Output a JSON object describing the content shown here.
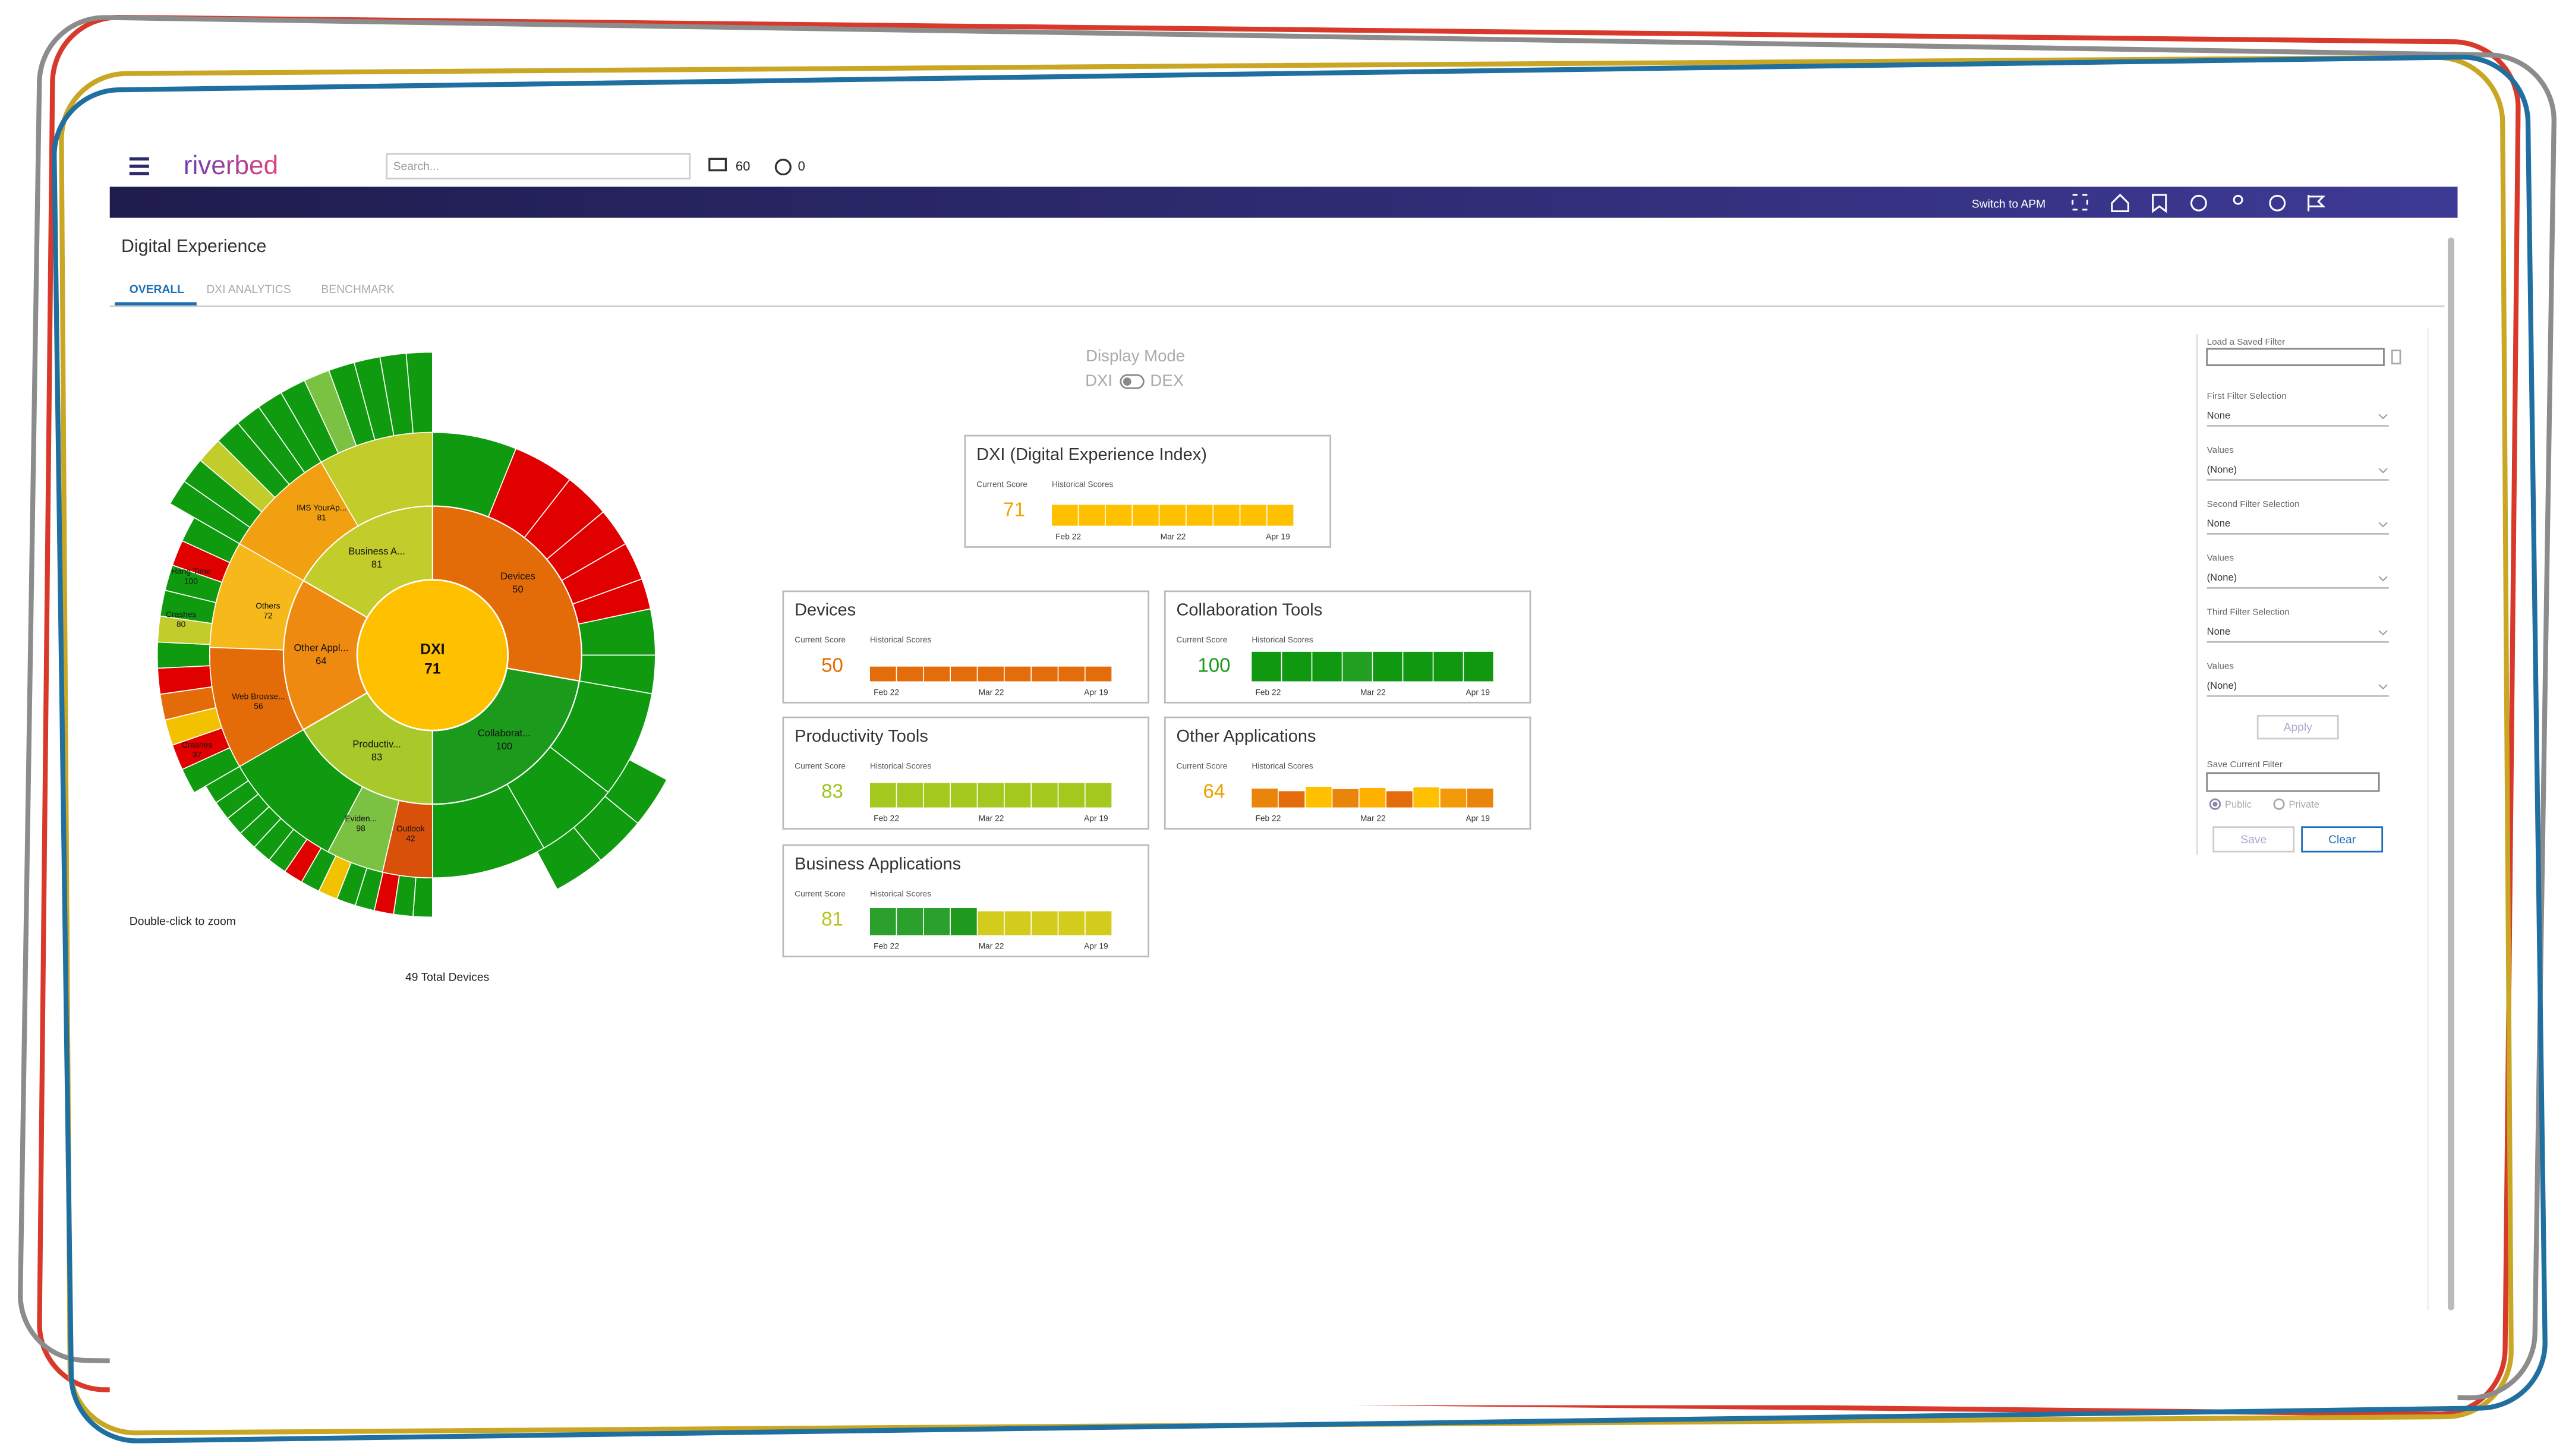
{
  "header": {
    "logo": "riverbed",
    "search_placeholder": "Search...",
    "devices_count": "60",
    "alerts_count": "0",
    "switch": "Switch to APM"
  },
  "page": {
    "title": "Digital Experience",
    "tabs": [
      "OVERALL",
      "DXI ANALYTICS",
      "BENCHMARK"
    ]
  },
  "display_mode": {
    "label": "Display Mode",
    "left": "DXI",
    "right": "DEX"
  },
  "cards": [
    {
      "title": "DXI (Digital Experience Index)",
      "current_label": "Current Score",
      "history_label": "Historical Scores",
      "score": 71,
      "score_color": "#f0a500",
      "history": [
        71,
        71,
        71,
        71,
        71,
        71,
        71,
        71,
        71
      ],
      "colors": [
        "#ffc000",
        "#ffc000",
        "#ffc000",
        "#ffc000",
        "#ffc000",
        "#ffc000",
        "#ffc000",
        "#ffc000",
        "#ffc000"
      ],
      "dates": [
        "Feb 22",
        "Mar 22",
        "Apr 19"
      ]
    },
    {
      "title": "Devices",
      "current_label": "Current Score",
      "history_label": "Historical Scores",
      "score": 50,
      "score_color": "#e06c00",
      "history": [
        50,
        50,
        50,
        50,
        50,
        50,
        50,
        50,
        50
      ],
      "colors": [
        "#e46c0a",
        "#e46c0a",
        "#e46c0a",
        "#e46c0a",
        "#e46c0a",
        "#e46c0a",
        "#e46c0a",
        "#e46c0a",
        "#e46c0a"
      ],
      "dates": [
        "Feb 22",
        "Mar 22",
        "Apr 19"
      ]
    },
    {
      "title": "Collaboration Tools",
      "current_label": "Current Score",
      "history_label": "Historical Scores",
      "score": 100,
      "score_color": "#1a9a1a",
      "history": [
        100,
        100,
        100,
        100,
        100,
        100,
        100,
        100
      ],
      "colors": [
        "#109810",
        "#109810",
        "#109810",
        "#22a022",
        "#109810",
        "#109810",
        "#109810",
        "#109810"
      ],
      "dates": [
        "Feb 22",
        "Mar 22",
        "Apr 19"
      ]
    },
    {
      "title": "Productivity Tools",
      "current_label": "Current Score",
      "history_label": "Historical Scores",
      "score": 83,
      "score_color": "#9cc31a",
      "history": [
        83,
        83,
        83,
        83,
        83,
        83,
        83,
        83,
        83
      ],
      "colors": [
        "#a4c81e",
        "#a4c81e",
        "#a4c81e",
        "#a4c81e",
        "#a4c81e",
        "#a4c81e",
        "#a4c81e",
        "#a4c81e",
        "#a4c81e"
      ],
      "dates": [
        "Feb 22",
        "Mar 22",
        "Apr 19"
      ]
    },
    {
      "title": "Other Applications",
      "current_label": "Current Score",
      "history_label": "Historical Scores",
      "score": 64,
      "score_color": "#e8a000",
      "history": [
        64,
        55,
        70,
        62,
        66,
        55,
        68,
        64,
        64
      ],
      "colors": [
        "#e8850a",
        "#e46c0a",
        "#ffc000",
        "#e8850a",
        "#ffb000",
        "#e46c0a",
        "#ffc000",
        "#f29a0a",
        "#e8850a"
      ],
      "dates": [
        "Feb 22",
        "Mar 22",
        "Apr 19"
      ]
    },
    {
      "title": "Business Applications",
      "current_label": "Current Score",
      "history_label": "Historical Scores",
      "score": 81,
      "score_color": "#b8c21c",
      "history": [
        92,
        92,
        92,
        92,
        81,
        81,
        81,
        81,
        81
      ],
      "colors": [
        "#2ca02c",
        "#2ca02c",
        "#2ca02c",
        "#1f9a1f",
        "#d4cc1c",
        "#d4cc1c",
        "#d4cc1c",
        "#d4cc1c",
        "#d4cc1c"
      ],
      "dates": [
        "Feb 22",
        "Mar 22",
        "Apr 19"
      ]
    }
  ],
  "sunburst": {
    "center": "DXI",
    "center_score": 71,
    "segments": [
      {
        "label": "Devices",
        "score": 50,
        "color": "#e36c09"
      },
      {
        "label": "Collaborat...",
        "score": 100,
        "color": "#1c9a1c"
      },
      {
        "label": "Productiv...",
        "score": 83,
        "color": "#a9c92a"
      },
      {
        "label": "Other Appl...",
        "score": 64,
        "color": "#ef8a10"
      },
      {
        "label": "Business A...",
        "score": 81,
        "color": "#c2cc2a"
      }
    ],
    "outer_labels": [
      {
        "label": "Others",
        "score": 72
      },
      {
        "label": "IMS YourAp...",
        "score": 81
      },
      {
        "label": "Web Browse...",
        "score": 56
      },
      {
        "label": "Eviden...",
        "score": 98
      },
      {
        "label": "Outlook",
        "score": 42
      },
      {
        "label": "Hang Time",
        "score": 100
      },
      {
        "label": "Crashes",
        "score": 80
      },
      {
        "label": "Crashes",
        "score": 37
      }
    ],
    "hint": "Double-click to zoom",
    "footer": "49 Total Devices"
  },
  "filters": {
    "saved": "Load a Saved Filter",
    "first": "First Filter Selection",
    "first_value": "None",
    "values1": "Values",
    "values1_value": "(None)",
    "second": "Second Filter Selection",
    "second_value": "None",
    "values2": "Values",
    "values2_value": "(None)",
    "third": "Third Filter Selection",
    "third_value": "None",
    "values3": "Values",
    "values3_value": "(None)",
    "apply": "Apply",
    "save_current": "Save Current Filter",
    "public": "Public",
    "private": "Private",
    "save": "Save",
    "clear": "Clear"
  }
}
